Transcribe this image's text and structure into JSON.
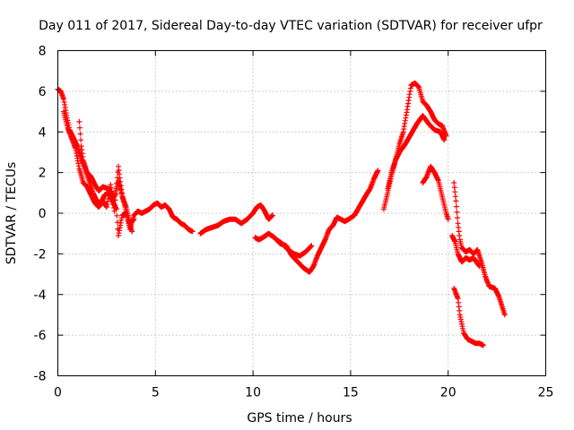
{
  "chart_data": {
    "type": "scatter",
    "title": "Day 011 of 2017, Sidereal Day-to-day VTEC variation (SDTVAR) for receiver ufpr",
    "xlabel": "GPS time / hours",
    "ylabel": "SDTVAR / TECUs",
    "xlim": [
      0,
      25
    ],
    "ylim": [
      -8,
      8
    ],
    "xticks": [
      "0",
      "5",
      "10",
      "15",
      "20",
      "25"
    ],
    "yticks": [
      "-8",
      "-6",
      "-4",
      "-2",
      "0",
      "2",
      "4",
      "6",
      "8"
    ],
    "grid": true,
    "marker": "+",
    "color": "#ff0000",
    "series": [
      {
        "name": "ufpr",
        "segments": [
          {
            "x": [
              0.0,
              0.15,
              0.3,
              0.45,
              0.6,
              0.8,
              1.0,
              1.2,
              1.4,
              1.6,
              1.8,
              2.0,
              2.2,
              2.4,
              2.6,
              2.8,
              3.0,
              3.1,
              3.3,
              3.5,
              3.7,
              3.9,
              4.1,
              4.3,
              4.5,
              4.7,
              4.9,
              5.1,
              5.3,
              5.5,
              5.7,
              5.9,
              6.1,
              6.3,
              6.5,
              6.7,
              6.9
            ],
            "y": [
              6.1,
              6.0,
              5.6,
              4.8,
              4.1,
              3.7,
              3.3,
              2.7,
              2.2,
              1.6,
              1.0,
              0.6,
              0.5,
              0.9,
              1.0,
              0.6,
              0.2,
              -1.1,
              -0.1,
              0.0,
              -0.8,
              -0.1,
              0.1,
              0.0,
              0.1,
              0.2,
              0.4,
              0.5,
              0.3,
              0.4,
              0.2,
              -0.2,
              -0.3,
              -0.5,
              -0.6,
              -0.8,
              -0.9
            ]
          },
          {
            "x": [
              0.3,
              0.5,
              0.7,
              0.9,
              1.1,
              1.3,
              1.5,
              1.7,
              1.9,
              2.1,
              2.3,
              2.5,
              2.7,
              2.9,
              3.1,
              3.3,
              3.5,
              3.7,
              3.9
            ],
            "y": [
              5.0,
              4.2,
              3.7,
              3.2,
              2.2,
              1.5,
              1.3,
              0.9,
              0.5,
              0.3,
              0.6,
              0.3,
              1.4,
              0.1,
              2.3,
              0.8,
              0.3,
              -0.5,
              -0.3
            ]
          },
          {
            "x": [
              1.1,
              1.2,
              1.3,
              1.5,
              1.7,
              1.9,
              2.1,
              2.3,
              2.6,
              2.9,
              3.1,
              3.4,
              3.6,
              3.8
            ],
            "y": [
              4.5,
              3.3,
              2.6,
              2.0,
              1.8,
              1.4,
              1.1,
              1.3,
              1.2,
              0.8,
              1.6,
              0.5,
              -0.3,
              -0.9
            ]
          },
          {
            "x": [
              7.3,
              7.6,
              7.9,
              8.2,
              8.5,
              8.8,
              9.1,
              9.4,
              9.7,
              10.0,
              10.2,
              10.4,
              10.6,
              10.8,
              11.0
            ],
            "y": [
              -1.0,
              -0.8,
              -0.7,
              -0.6,
              -0.4,
              -0.3,
              -0.3,
              -0.5,
              -0.3,
              0.0,
              0.3,
              0.4,
              0.1,
              -0.3,
              -0.1
            ]
          },
          {
            "x": [
              10.1,
              10.3,
              10.5,
              10.8,
              11.1,
              11.4,
              11.7,
              12.0,
              12.3,
              12.6,
              12.9,
              13.1,
              13.3,
              13.5,
              13.7,
              13.9,
              14.1,
              14.3,
              14.5,
              14.7,
              14.9,
              15.2,
              15.5,
              15.8,
              16.0,
              16.2,
              16.4
            ],
            "y": [
              -1.2,
              -1.3,
              -1.2,
              -1.0,
              -1.2,
              -1.5,
              -1.6,
              -2.1,
              -2.4,
              -2.7,
              -2.9,
              -2.6,
              -2.1,
              -1.7,
              -1.3,
              -0.8,
              -0.6,
              -0.2,
              -0.3,
              -0.4,
              -0.3,
              -0.1,
              0.4,
              0.9,
              1.2,
              1.7,
              2.1
            ]
          },
          {
            "x": [
              11.2,
              11.5,
              11.8,
              12.1,
              12.4,
              12.7,
              13.0
            ],
            "y": [
              -1.3,
              -1.5,
              -1.8,
              -2.0,
              -2.1,
              -1.9,
              -1.6
            ]
          },
          {
            "x": [
              16.7,
              16.9,
              17.1,
              17.3,
              17.5,
              17.7,
              17.9,
              18.1,
              18.3,
              18.5,
              18.7,
              18.9,
              19.1,
              19.3,
              19.5,
              19.7,
              19.9
            ],
            "y": [
              0.2,
              1.0,
              1.9,
              2.6,
              3.4,
              4.0,
              5.1,
              6.3,
              6.4,
              6.2,
              5.5,
              5.3,
              5.0,
              4.6,
              4.4,
              4.3,
              3.8
            ]
          },
          {
            "x": [
              16.9,
              17.1,
              17.3,
              17.5,
              17.8,
              18.1,
              18.4,
              18.7,
              19.0,
              19.3,
              19.6,
              19.8
            ],
            "y": [
              1.2,
              2.0,
              2.6,
              3.0,
              3.4,
              3.9,
              4.4,
              4.8,
              4.4,
              4.1,
              4.0,
              3.6
            ]
          },
          {
            "x": [
              18.7,
              18.9,
              19.1,
              19.3,
              19.5,
              19.7,
              19.9,
              20.0
            ],
            "y": [
              1.5,
              1.8,
              2.3,
              2.0,
              1.6,
              0.8,
              0.0,
              -0.3
            ]
          },
          {
            "x": [
              20.3,
              20.4,
              20.5,
              20.6,
              20.7,
              20.9,
              21.1,
              21.3,
              21.5,
              21.7,
              21.9,
              22.1,
              22.4,
              22.6,
              22.8,
              22.9
            ],
            "y": [
              1.5,
              0.6,
              -0.5,
              -1.3,
              -1.7,
              -1.9,
              -1.8,
              -2.0,
              -1.8,
              -2.4,
              -3.1,
              -3.6,
              -3.7,
              -4.1,
              -4.7,
              -5.0
            ]
          },
          {
            "x": [
              20.2,
              20.35,
              20.5,
              20.7,
              20.9,
              21.1,
              21.3,
              21.6
            ],
            "y": [
              -1.1,
              -1.4,
              -2.0,
              -2.4,
              -2.2,
              -2.3,
              -2.2,
              -2.6
            ]
          },
          {
            "x": [
              20.3,
              20.5,
              20.6,
              20.8,
              21.0,
              21.2,
              21.4,
              21.6,
              21.8
            ],
            "y": [
              -3.7,
              -4.2,
              -5.0,
              -5.9,
              -6.2,
              -6.3,
              -6.4,
              -6.4,
              -6.5
            ]
          }
        ]
      }
    ]
  }
}
